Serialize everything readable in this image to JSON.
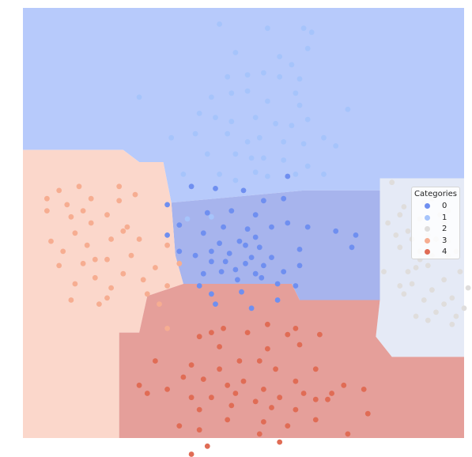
{
  "chart_data": {
    "type": "scatter",
    "title": "",
    "xlabel": "",
    "ylabel": "",
    "axes_visible": false,
    "xlim": [
      -5.5,
      5.5
    ],
    "ylim": [
      -5.3,
      5.3
    ],
    "background": "decision regions of a classifier, colored by predicted category",
    "legend": {
      "title": "Categories",
      "placement": "center-right",
      "entries": [
        "0",
        "1",
        "2",
        "3",
        "4"
      ]
    },
    "palette": {
      "0": "#6f8ff0",
      "1": "#a6c4fb",
      "2": "#dfdddc",
      "3": "#f6ad91",
      "4": "#e06c55"
    },
    "region_palette": {
      "0": "#a7b4ed",
      "1": "#b7cafb",
      "2": "#e5eaf6",
      "3": "#fbd7cb",
      "4": "#e59f9a"
    },
    "regions": [
      {
        "category": "1",
        "polygon": [
          [
            -5.5,
            5.3
          ],
          [
            5.5,
            5.3
          ],
          [
            5.5,
            1.1
          ],
          [
            3.4,
            1.1
          ],
          [
            3.4,
            0.8
          ],
          [
            1.5,
            0.8
          ],
          [
            -1.8,
            0.5
          ],
          [
            -2.0,
            1.5
          ],
          [
            -2.6,
            1.5
          ],
          [
            -3.0,
            1.8
          ],
          [
            -5.5,
            1.8
          ]
        ]
      },
      {
        "category": "0",
        "polygon": [
          [
            -1.8,
            0.5
          ],
          [
            1.5,
            0.8
          ],
          [
            3.4,
            0.8
          ],
          [
            3.4,
            -1.9
          ],
          [
            1.4,
            -1.9
          ],
          [
            1.2,
            -1.5
          ],
          [
            -1.5,
            -1.5
          ],
          [
            -1.7,
            -0.8
          ]
        ]
      },
      {
        "category": "2",
        "polygon": [
          [
            3.4,
            1.1
          ],
          [
            5.5,
            1.1
          ],
          [
            5.5,
            -3.3
          ],
          [
            3.7,
            -3.3
          ],
          [
            3.3,
            -2.8
          ],
          [
            3.4,
            -1.9
          ]
        ]
      },
      {
        "category": "3",
        "polygon": [
          [
            -5.5,
            1.8
          ],
          [
            -3.0,
            1.8
          ],
          [
            -2.6,
            1.5
          ],
          [
            -2.0,
            1.5
          ],
          [
            -1.8,
            0.5
          ],
          [
            -1.7,
            -0.8
          ],
          [
            -1.5,
            -1.5
          ],
          [
            -2.4,
            -1.8
          ],
          [
            -2.6,
            -2.7
          ],
          [
            -3.1,
            -2.7
          ],
          [
            -3.1,
            -5.3
          ],
          [
            -5.5,
            -5.3
          ]
        ]
      },
      {
        "category": "4",
        "polygon": [
          [
            -3.1,
            -5.3
          ],
          [
            5.5,
            -5.3
          ],
          [
            5.5,
            -3.3
          ],
          [
            3.7,
            -3.3
          ],
          [
            3.3,
            -2.8
          ],
          [
            3.4,
            -1.9
          ],
          [
            1.4,
            -1.9
          ],
          [
            1.2,
            -1.5
          ],
          [
            -1.5,
            -1.5
          ],
          [
            -2.4,
            -1.8
          ],
          [
            -2.6,
            -2.7
          ],
          [
            -3.1,
            -2.7
          ]
        ]
      }
    ],
    "series": [
      {
        "name": "0",
        "points": [
          [
            1.1,
            1.15
          ],
          [
            0.0,
            0.8
          ],
          [
            -1.3,
            0.9
          ],
          [
            -0.7,
            0.85
          ],
          [
            0.5,
            0.55
          ],
          [
            1.0,
            0.6
          ],
          [
            -1.9,
            0.45
          ],
          [
            -0.9,
            0.25
          ],
          [
            -0.3,
            0.3
          ],
          [
            0.3,
            0.2
          ],
          [
            1.1,
            0.0
          ],
          [
            1.6,
            -0.1
          ],
          [
            2.8,
            -0.3
          ],
          [
            -0.5,
            -0.1
          ],
          [
            0.1,
            -0.15
          ],
          [
            0.7,
            -0.1
          ],
          [
            -1.0,
            -0.25
          ],
          [
            -0.6,
            -0.5
          ],
          [
            -0.1,
            -0.45
          ],
          [
            0.4,
            -0.6
          ],
          [
            1.4,
            -0.65
          ],
          [
            2.7,
            -0.6
          ],
          [
            -1.6,
            -0.7
          ],
          [
            -0.8,
            -0.7
          ],
          [
            -0.35,
            -0.75
          ],
          [
            0.2,
            -0.85
          ],
          [
            0.7,
            -0.85
          ],
          [
            -1.2,
            -0.8
          ],
          [
            -0.45,
            -0.95
          ],
          [
            0.05,
            -1.0
          ],
          [
            0.5,
            -1.05
          ],
          [
            1.4,
            -1.05
          ],
          [
            -0.2,
            -1.15
          ],
          [
            0.3,
            -1.25
          ],
          [
            -0.8,
            -0.95
          ],
          [
            -1.0,
            -1.25
          ],
          [
            1.0,
            -1.2
          ],
          [
            -1.1,
            -1.55
          ],
          [
            -0.55,
            -1.2
          ],
          [
            -0.15,
            -1.4
          ],
          [
            0.45,
            -1.35
          ],
          [
            0.85,
            -1.5
          ],
          [
            -0.8,
            -1.75
          ],
          [
            -0.05,
            -1.7
          ],
          [
            0.85,
            -1.9
          ],
          [
            0.2,
            -2.1
          ],
          [
            -1.6,
            -0.05
          ],
          [
            -1.9,
            -0.3
          ],
          [
            0.05,
            -0.55
          ],
          [
            2.3,
            -0.2
          ],
          [
            -0.7,
            -2.0
          ],
          [
            0.3,
            -0.35
          ],
          [
            1.3,
            -1.55
          ]
        ]
      },
      {
        "name": "1",
        "points": [
          [
            -0.6,
            4.9
          ],
          [
            0.6,
            4.8
          ],
          [
            1.5,
            4.8
          ],
          [
            1.7,
            4.7
          ],
          [
            -0.2,
            4.2
          ],
          [
            0.9,
            4.1
          ],
          [
            1.6,
            4.3
          ],
          [
            1.2,
            3.9
          ],
          [
            -0.4,
            3.6
          ],
          [
            0.1,
            3.65
          ],
          [
            0.5,
            3.7
          ],
          [
            0.9,
            3.6
          ],
          [
            1.4,
            3.55
          ],
          [
            -0.8,
            3.1
          ],
          [
            -0.3,
            3.2
          ],
          [
            0.1,
            3.25
          ],
          [
            0.6,
            3.0
          ],
          [
            1.3,
            3.2
          ],
          [
            1.4,
            2.9
          ],
          [
            -1.1,
            2.7
          ],
          [
            -0.7,
            2.6
          ],
          [
            -0.3,
            2.5
          ],
          [
            0.3,
            2.6
          ],
          [
            0.8,
            2.45
          ],
          [
            1.2,
            2.4
          ],
          [
            1.6,
            2.55
          ],
          [
            -1.2,
            2.2
          ],
          [
            -0.4,
            2.2
          ],
          [
            0.1,
            2.0
          ],
          [
            0.4,
            2.1
          ],
          [
            1.0,
            2.0
          ],
          [
            1.5,
            1.95
          ],
          [
            2.0,
            2.1
          ],
          [
            2.3,
            1.9
          ],
          [
            -1.8,
            2.1
          ],
          [
            -0.9,
            1.7
          ],
          [
            -0.2,
            1.7
          ],
          [
            0.5,
            1.6
          ],
          [
            1.0,
            1.55
          ],
          [
            1.6,
            1.4
          ],
          [
            -1.5,
            1.2
          ],
          [
            0.3,
            1.25
          ],
          [
            0.6,
            1.15
          ],
          [
            1.3,
            1.2
          ],
          [
            2.0,
            1.2
          ],
          [
            -0.6,
            1.2
          ],
          [
            -0.8,
            0.15
          ],
          [
            0.2,
            1.6
          ],
          [
            2.6,
            2.8
          ],
          [
            -2.6,
            3.1
          ],
          [
            -0.2,
            1.05
          ],
          [
            -1.4,
            0.1
          ]
        ]
      },
      {
        "name": "2",
        "points": [
          [
            3.7,
            1.0
          ],
          [
            4.5,
            0.5
          ],
          [
            4.9,
            0.2
          ],
          [
            4.0,
            0.4
          ],
          [
            3.6,
            0.0
          ],
          [
            4.4,
            0.1
          ],
          [
            5.0,
            0.0
          ],
          [
            3.8,
            -0.3
          ],
          [
            4.2,
            -0.4
          ],
          [
            4.6,
            -0.3
          ],
          [
            5.1,
            -0.45
          ],
          [
            4.7,
            -0.8
          ],
          [
            5.1,
            -0.8
          ],
          [
            3.9,
            -0.6
          ],
          [
            4.4,
            -0.7
          ],
          [
            5.3,
            -0.7
          ],
          [
            3.5,
            -1.2
          ],
          [
            4.1,
            -1.2
          ],
          [
            4.6,
            -1.05
          ],
          [
            5.0,
            -1.4
          ],
          [
            5.4,
            -1.2
          ],
          [
            3.9,
            -1.55
          ],
          [
            4.2,
            -1.5
          ],
          [
            4.7,
            -1.65
          ],
          [
            5.2,
            -1.85
          ],
          [
            4.0,
            -1.75
          ],
          [
            4.5,
            -1.9
          ],
          [
            5.0,
            -2.0
          ],
          [
            4.3,
            -2.3
          ],
          [
            4.8,
            -2.2
          ],
          [
            5.3,
            -2.3
          ],
          [
            5.2,
            -2.5
          ],
          [
            4.4,
            -0.9
          ],
          [
            5.1,
            0.3
          ],
          [
            4.1,
            -0.2
          ],
          [
            3.9,
            0.2
          ],
          [
            4.8,
            -0.4
          ],
          [
            4.3,
            -1.1
          ],
          [
            4.6,
            -2.4
          ],
          [
            5.5,
            -2.1
          ],
          [
            5.6,
            -1.6
          ],
          [
            4.7,
            0.6
          ]
        ]
      },
      {
        "name": "3",
        "points": [
          [
            -4.6,
            0.8
          ],
          [
            -4.1,
            0.9
          ],
          [
            -4.9,
            0.6
          ],
          [
            -4.4,
            0.45
          ],
          [
            -4.9,
            0.3
          ],
          [
            -4.3,
            0.15
          ],
          [
            -3.8,
            0.6
          ],
          [
            -3.1,
            0.55
          ],
          [
            -2.7,
            0.7
          ],
          [
            -3.4,
            0.2
          ],
          [
            -3.0,
            -0.2
          ],
          [
            -2.6,
            -0.4
          ],
          [
            -3.8,
            0.0
          ],
          [
            -4.2,
            -0.25
          ],
          [
            -4.8,
            -0.45
          ],
          [
            -3.3,
            -0.4
          ],
          [
            -3.9,
            -0.55
          ],
          [
            -4.5,
            -0.7
          ],
          [
            -2.8,
            -0.8
          ],
          [
            -3.4,
            -0.9
          ],
          [
            -4.0,
            -1.0
          ],
          [
            -4.6,
            -1.05
          ],
          [
            -3.0,
            -1.25
          ],
          [
            -3.7,
            -1.35
          ],
          [
            -4.2,
            -1.5
          ],
          [
            -2.5,
            -1.4
          ],
          [
            -2.2,
            -1.1
          ],
          [
            -1.6,
            -1.0
          ],
          [
            -1.9,
            -1.55
          ],
          [
            -2.4,
            -1.75
          ],
          [
            -3.3,
            -1.6
          ],
          [
            -4.3,
            -1.9
          ],
          [
            -3.6,
            -2.0
          ],
          [
            -2.1,
            -2.0
          ],
          [
            -1.9,
            -2.6
          ],
          [
            -3.1,
            0.9
          ],
          [
            -3.7,
            -0.9
          ],
          [
            -4.0,
            0.3
          ],
          [
            -2.9,
            -0.1
          ],
          [
            -3.4,
            -1.85
          ],
          [
            -1.9,
            -0.55
          ]
        ]
      },
      {
        "name": "4",
        "points": [
          [
            -1.1,
            -2.8
          ],
          [
            -0.8,
            -2.7
          ],
          [
            -0.5,
            -2.6
          ],
          [
            0.1,
            -2.7
          ],
          [
            0.6,
            -2.5
          ],
          [
            1.1,
            -2.75
          ],
          [
            1.3,
            -2.6
          ],
          [
            1.9,
            -2.75
          ],
          [
            -0.6,
            -3.05
          ],
          [
            0.6,
            -3.1
          ],
          [
            1.4,
            -3.0
          ],
          [
            -2.2,
            -3.4
          ],
          [
            -1.3,
            -3.5
          ],
          [
            -0.6,
            -3.6
          ],
          [
            -0.1,
            -3.4
          ],
          [
            0.4,
            -3.4
          ],
          [
            0.8,
            -3.6
          ],
          [
            1.3,
            -3.9
          ],
          [
            1.8,
            -3.6
          ],
          [
            2.5,
            -4.0
          ],
          [
            -1.5,
            -3.8
          ],
          [
            -1.0,
            -3.85
          ],
          [
            -0.4,
            -4.0
          ],
          [
            0.0,
            -3.9
          ],
          [
            0.5,
            -4.1
          ],
          [
            0.9,
            -4.3
          ],
          [
            1.5,
            -4.2
          ],
          [
            2.1,
            -4.35
          ],
          [
            -1.9,
            -4.1
          ],
          [
            -1.3,
            -4.3
          ],
          [
            -0.8,
            -4.3
          ],
          [
            -0.2,
            -4.2
          ],
          [
            0.3,
            -4.4
          ],
          [
            0.7,
            -4.55
          ],
          [
            1.3,
            -4.6
          ],
          [
            1.8,
            -4.35
          ],
          [
            3.0,
            -4.1
          ],
          [
            -2.4,
            -4.2
          ],
          [
            -0.3,
            -4.5
          ],
          [
            -1.1,
            -4.6
          ],
          [
            -0.4,
            -4.85
          ],
          [
            0.5,
            -4.9
          ],
          [
            1.1,
            -5.0
          ],
          [
            1.8,
            -4.85
          ],
          [
            -1.6,
            -5.0
          ],
          [
            -1.1,
            -5.1
          ],
          [
            0.4,
            -5.2
          ],
          [
            3.1,
            -4.7
          ],
          [
            2.6,
            -5.2
          ],
          [
            -1.3,
            -5.7
          ],
          [
            -2.6,
            -4.0
          ],
          [
            -0.9,
            -5.5
          ],
          [
            0.9,
            -5.4
          ],
          [
            2.2,
            -4.2
          ]
        ]
      }
    ]
  }
}
